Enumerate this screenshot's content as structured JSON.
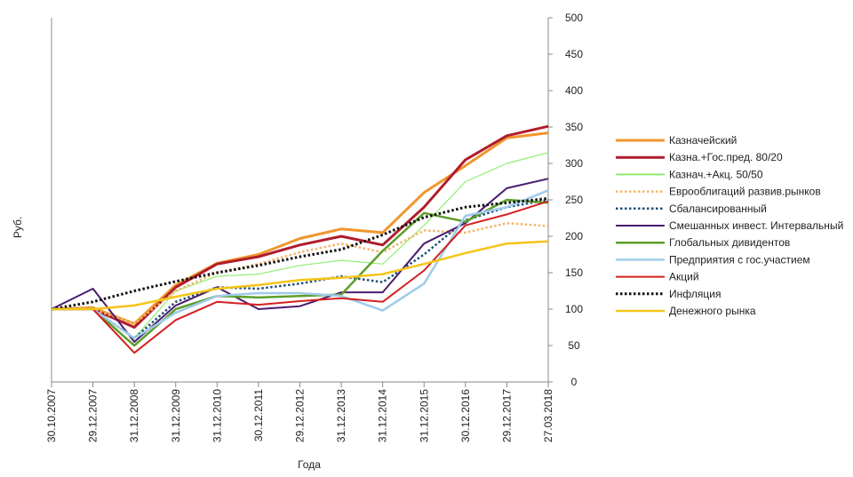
{
  "chart_data": {
    "type": "line",
    "title": "",
    "xlabel": "Года",
    "ylabel": "Руб.",
    "ylim": [
      0,
      500
    ],
    "yticks": [
      0,
      50,
      100,
      150,
      200,
      250,
      300,
      350,
      400,
      450,
      500
    ],
    "y_axis_side": "right",
    "grid": false,
    "legend_position": "right",
    "categories": [
      "30.10.2007",
      "29.12.2007",
      "31.12.2008",
      "31.12.2009",
      "31.12.2010",
      "30.12.2011",
      "29.12.2012",
      "31.12.2013",
      "31.12.2014",
      "31.12.2015",
      "30.12.2016",
      "29.12.2017",
      "27.03.2018"
    ],
    "series": [
      {
        "name": "Казначейский",
        "color": "#F0962D",
        "dash": "solid",
        "width": 3,
        "values": [
          100,
          102,
          80,
          133,
          163,
          175,
          197,
          210,
          205,
          260,
          297,
          335,
          342
        ]
      },
      {
        "name": "Казна.+Гос.пред. 80/20",
        "color": "#B01C2E",
        "dash": "solid",
        "width": 3,
        "values": [
          100,
          100,
          75,
          130,
          162,
          172,
          188,
          200,
          188,
          240,
          305,
          338,
          351
        ]
      },
      {
        "name": "Казнач.+Акц. 50/50",
        "color": "#90EE70",
        "dash": "solid",
        "width": 1.2,
        "values": [
          100,
          100,
          60,
          125,
          145,
          148,
          160,
          167,
          162,
          215,
          275,
          300,
          315
        ]
      },
      {
        "name": "Еврооблигаций развив.рынков",
        "color": "#F5B46A",
        "dash": "dot",
        "width": 2.5,
        "values": [
          100,
          100,
          80,
          125,
          150,
          162,
          178,
          190,
          178,
          208,
          205,
          218,
          214
        ]
      },
      {
        "name": "Сбалансированный",
        "color": "#1F4E79",
        "dash": "dot",
        "width": 2.5,
        "values": [
          100,
          100,
          60,
          110,
          130,
          128,
          135,
          145,
          137,
          175,
          222,
          240,
          250
        ]
      },
      {
        "name": "Смешанных инвест. Интервальный",
        "color": "#4B1C6E",
        "dash": "solid",
        "width": 2,
        "values": [
          100,
          128,
          55,
          105,
          130,
          100,
          104,
          123,
          123,
          190,
          218,
          266,
          279
        ]
      },
      {
        "name": "Глобальных дивидентов",
        "color": "#5E9E2A",
        "dash": "solid",
        "width": 2.5,
        "values": [
          100,
          100,
          50,
          100,
          118,
          116,
          118,
          120,
          180,
          232,
          220,
          250,
          246
        ]
      },
      {
        "name": "Предприятия с гос.участием",
        "color": "#9FCBEA",
        "dash": "solid",
        "width": 2.5,
        "values": [
          100,
          100,
          60,
          95,
          118,
          122,
          122,
          118,
          98,
          135,
          228,
          240,
          263
        ]
      },
      {
        "name": "Акций",
        "color": "#D42020",
        "dash": "solid",
        "width": 2,
        "values": [
          100,
          100,
          40,
          85,
          110,
          106,
          111,
          115,
          110,
          153,
          215,
          230,
          248
        ]
      },
      {
        "name": "Инфляция",
        "color": "#111111",
        "dash": "dot",
        "width": 3,
        "values": [
          100,
          110,
          125,
          138,
          150,
          160,
          172,
          182,
          202,
          226,
          240,
          246,
          252
        ]
      },
      {
        "name": "Денежного рынка",
        "color": "#F5C518",
        "dash": "solid",
        "width": 2.5,
        "values": [
          100,
          100,
          105,
          117,
          128,
          133,
          140,
          143,
          148,
          162,
          177,
          190,
          193
        ]
      }
    ]
  }
}
